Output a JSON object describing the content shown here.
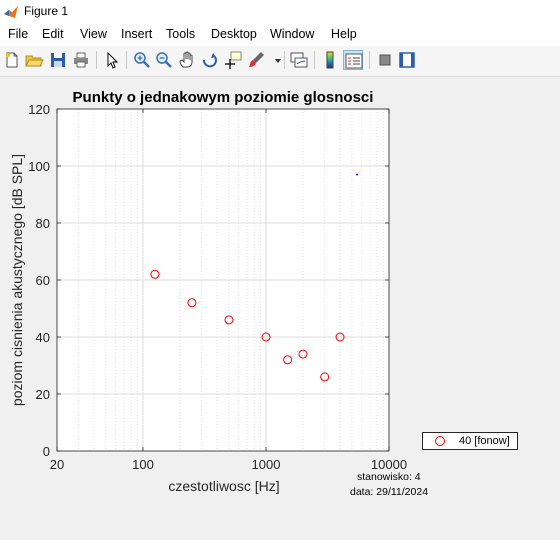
{
  "window": {
    "title": "Figure 1"
  },
  "menu": [
    "File",
    "Edit",
    "View",
    "Insert",
    "Tools",
    "Desktop",
    "Window",
    "Help"
  ],
  "toolbar": {
    "buttons": [
      "new-figure-icon",
      "open-file-icon",
      "save-icon",
      "print-icon",
      "edit-plot-arrow-icon",
      "zoom-in-icon",
      "zoom-out-icon",
      "pan-hand-icon",
      "rotate-3d-icon",
      "data-cursor-icon",
      "brush-icon",
      "brush-dropdown-icon",
      "link-plot-icon",
      "colorbar-icon",
      "legend-icon",
      "hide-plot-tools-icon",
      "show-plot-tools-icon"
    ]
  },
  "chart_data": {
    "type": "scatter",
    "title": "Punkty o jednakowym poziomie glosnosci",
    "xlabel": "czestotliwosc [Hz]",
    "ylabel": "poziom cisnienia akustycznego [dB SPL]",
    "xscale": "log",
    "xlim": [
      20,
      10000
    ],
    "ylim": [
      0,
      120
    ],
    "xticks": [
      20,
      100,
      1000,
      10000
    ],
    "xtick_labels": [
      "20",
      "100",
      "1000",
      "10000"
    ],
    "yticks": [
      0,
      20,
      40,
      60,
      80,
      100,
      120
    ],
    "ytick_labels": [
      "0",
      "20",
      "40",
      "60",
      "80",
      "100",
      "120"
    ],
    "grid": true,
    "series": [
      {
        "name": "40 [fonow]",
        "marker": "circle",
        "color": "#ff0000",
        "x": [
          125,
          250,
          500,
          1000,
          1500,
          2000,
          3000,
          4000
        ],
        "y": [
          62,
          52,
          46,
          40,
          32,
          34,
          26,
          40
        ]
      },
      {
        "marker": "dot",
        "color": "#0000ff",
        "x": [
          5500
        ],
        "y": [
          97
        ]
      }
    ],
    "legend_position": "outside-bottom-right",
    "annotations": [
      "stanowisko: 4",
      "data: 29/11/2024"
    ]
  }
}
